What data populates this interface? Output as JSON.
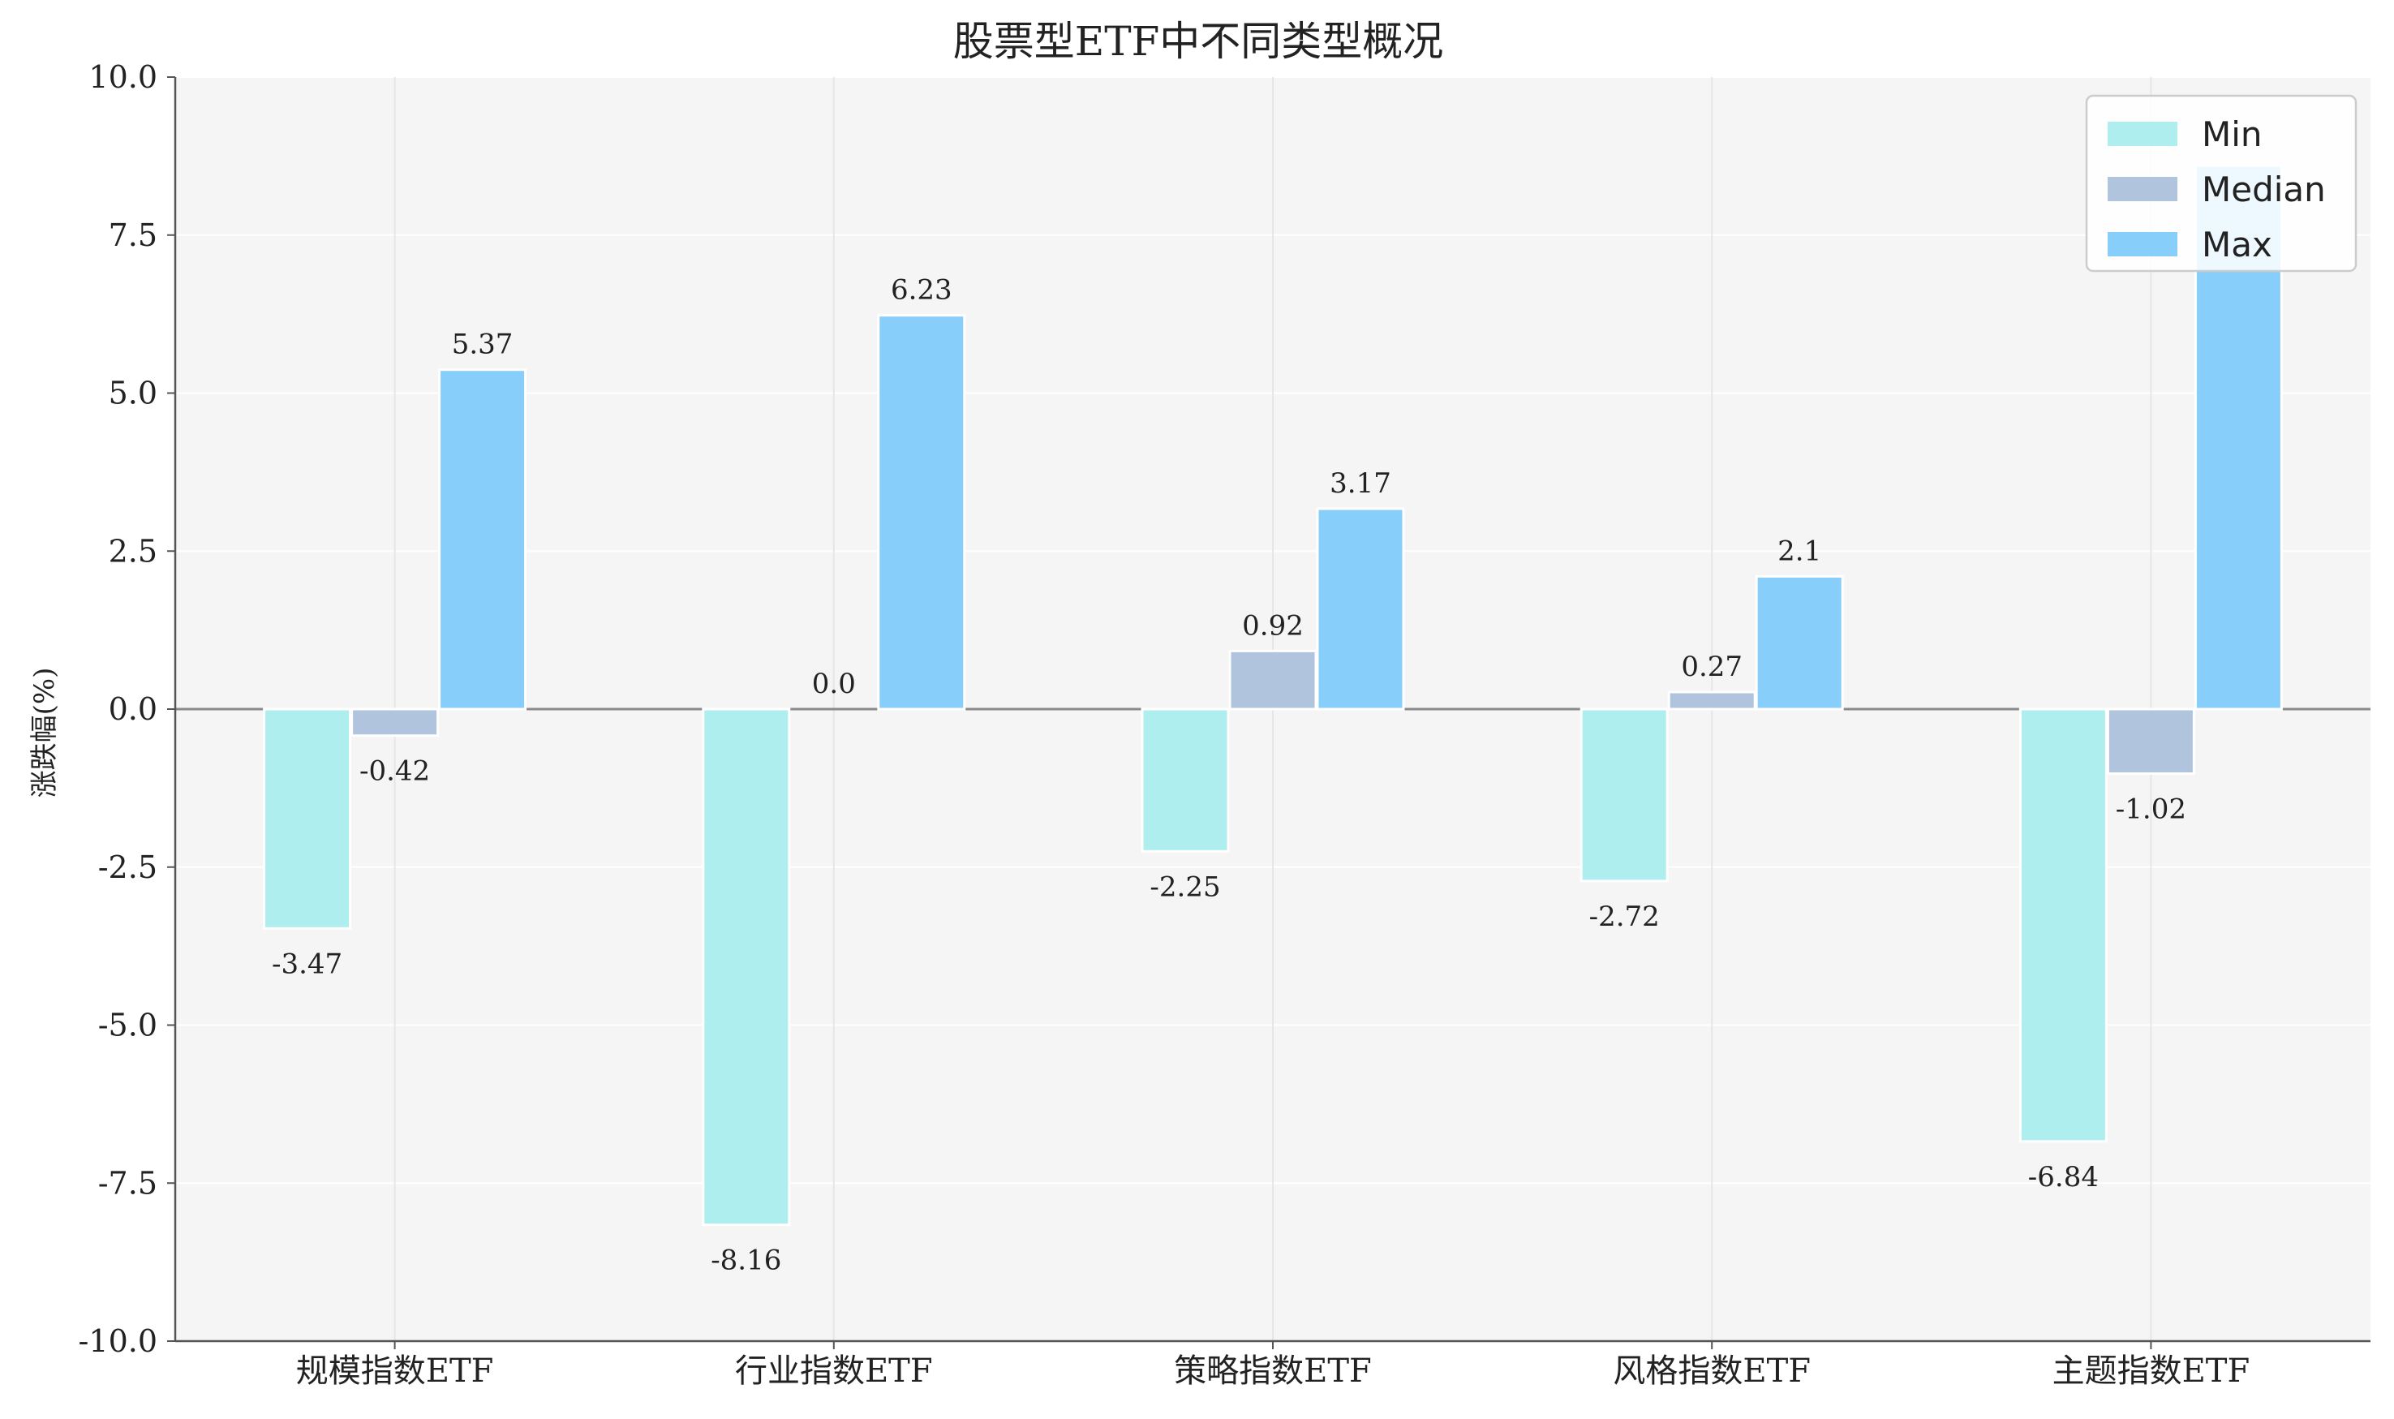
{
  "chart_data": {
    "type": "bar",
    "title": "股票型ETF中不同类型概况",
    "xlabel": "",
    "ylabel": "涨跌幅(%)",
    "categories": [
      "规模指数ETF",
      "行业指数ETF",
      "策略指数ETF",
      "风格指数ETF",
      "主题指数ETF"
    ],
    "series": [
      {
        "name": "Min",
        "values": [
          -3.47,
          -8.16,
          -2.25,
          -2.72,
          -6.84
        ],
        "labels": [
          "-3.47",
          "-8.16",
          "-2.25",
          "-2.72",
          "-6.84"
        ],
        "color": "#afeeee"
      },
      {
        "name": "Median",
        "values": [
          -0.42,
          0.0,
          0.92,
          0.27,
          -1.02
        ],
        "labels": [
          "-0.42",
          "0.0",
          "0.92",
          "0.27",
          "-1.02"
        ],
        "color": "#b0c4de"
      },
      {
        "name": "Max",
        "values": [
          5.37,
          6.23,
          3.17,
          2.1,
          8.6
        ],
        "labels": [
          "5.37",
          "6.23",
          "3.17",
          "2.1",
          ""
        ],
        "color": "#87cefa"
      }
    ],
    "ylim": [
      -10,
      10
    ],
    "yticks": [
      "-10.0",
      "-7.5",
      "-5.0",
      "-2.5",
      "0.0",
      "2.5",
      "5.0",
      "7.5",
      "10.0"
    ],
    "grid": true,
    "legend_position": "top-right"
  }
}
